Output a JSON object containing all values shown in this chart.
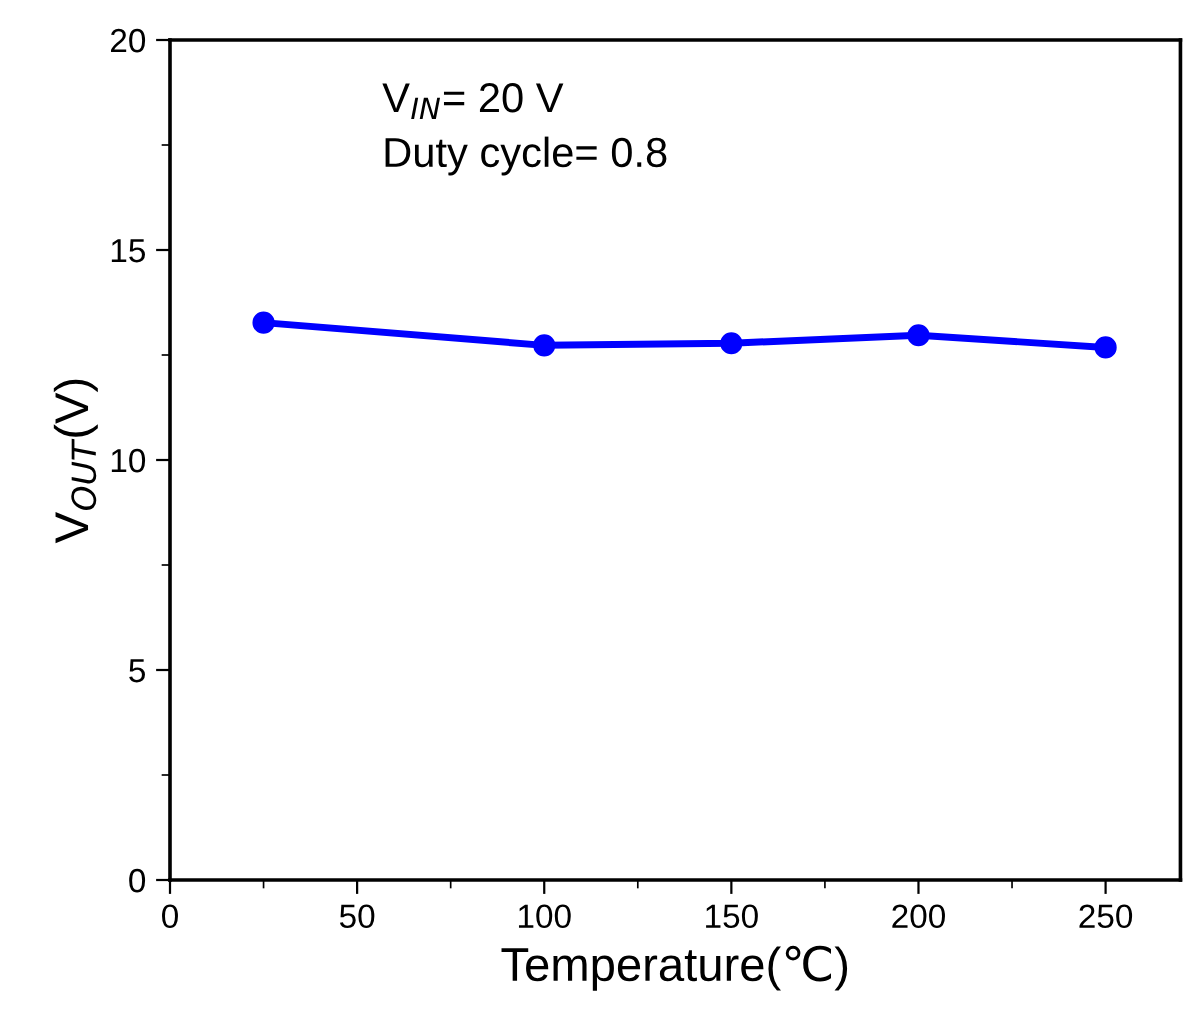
{
  "chart_data": {
    "type": "line",
    "xlabel": "Temperature(℃)",
    "ylabel": "V$_{OUT}$(V)",
    "x": [
      25,
      100,
      150,
      200,
      250
    ],
    "series": [
      {
        "color": "#0000ff",
        "values": [
          13.27,
          12.73,
          12.78,
          12.97,
          12.68
        ]
      }
    ],
    "xlim": [
      0,
      270
    ],
    "xticks": [
      0,
      50,
      100,
      150,
      200,
      250
    ],
    "ylim": [
      0,
      20
    ],
    "yticks": [
      0,
      5,
      10,
      15,
      20
    ],
    "marker": "circle",
    "line_style": "solid",
    "grid": false,
    "legend": false,
    "annotations": [
      "V$_{IN}$= 20 V",
      "Duty cycle= 0.8"
    ]
  }
}
